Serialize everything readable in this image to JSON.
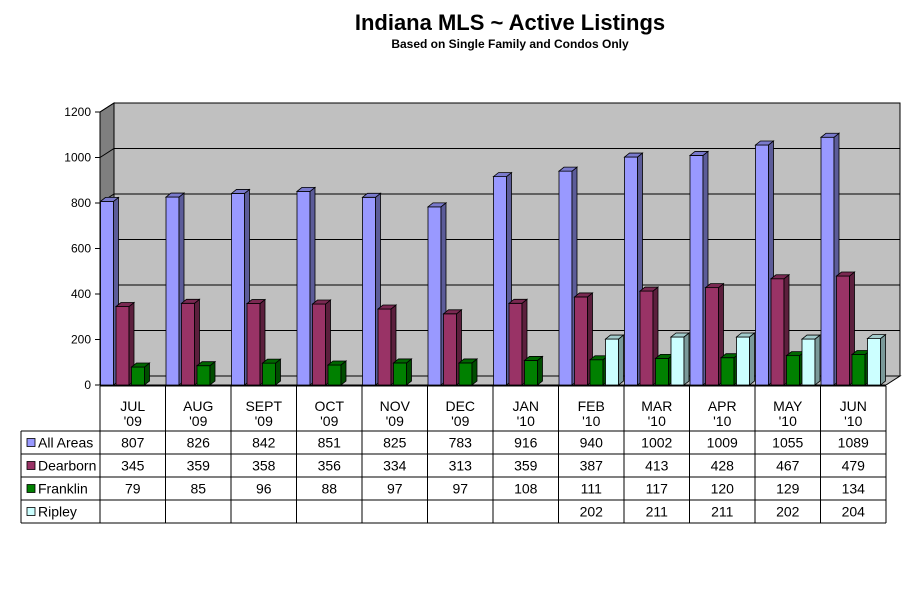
{
  "chart_data": {
    "type": "bar",
    "title": "Indiana MLS ~ Active Listings",
    "subtitle": "Based on Single Family and Condos Only",
    "ylim": [
      0,
      1200
    ],
    "yticks": [
      "0",
      "200",
      "400",
      "600",
      "800",
      "1000",
      "1200"
    ],
    "categories": [
      "JUL '09",
      "AUG '09",
      "SEPT '09",
      "OCT '09",
      "NOV '09",
      "DEC '09",
      "JAN '10",
      "FEB '10",
      "MAR '10",
      "APR '10",
      "MAY '10",
      "JUN '10"
    ],
    "category_lines": [
      [
        "JUL",
        "'09"
      ],
      [
        "AUG",
        "'09"
      ],
      [
        "SEPT",
        "'09"
      ],
      [
        "OCT",
        "'09"
      ],
      [
        "NOV",
        "'09"
      ],
      [
        "DEC",
        "'09"
      ],
      [
        "JAN",
        "'10"
      ],
      [
        "FEB",
        "'10"
      ],
      [
        "MAR",
        "'10"
      ],
      [
        "APR",
        "'10"
      ],
      [
        "MAY",
        "'10"
      ],
      [
        "JUN",
        "'10"
      ]
    ],
    "series": [
      {
        "name": "All Areas",
        "color": "#9999FF",
        "values": [
          807,
          826,
          842,
          851,
          825,
          783,
          916,
          940,
          1002,
          1009,
          1055,
          1089
        ]
      },
      {
        "name": "Dearborn",
        "color": "#993366",
        "values": [
          345,
          359,
          358,
          356,
          334,
          313,
          359,
          387,
          413,
          428,
          467,
          479
        ]
      },
      {
        "name": "Franklin",
        "color": "#008000",
        "values": [
          79,
          85,
          96,
          88,
          97,
          97,
          108,
          111,
          117,
          120,
          129,
          134
        ]
      },
      {
        "name": "Ripley",
        "color": "#CCFFFF",
        "values": [
          null,
          null,
          null,
          null,
          null,
          null,
          null,
          202,
          211,
          211,
          202,
          204
        ]
      }
    ],
    "grid": true,
    "legend": "data-table"
  }
}
